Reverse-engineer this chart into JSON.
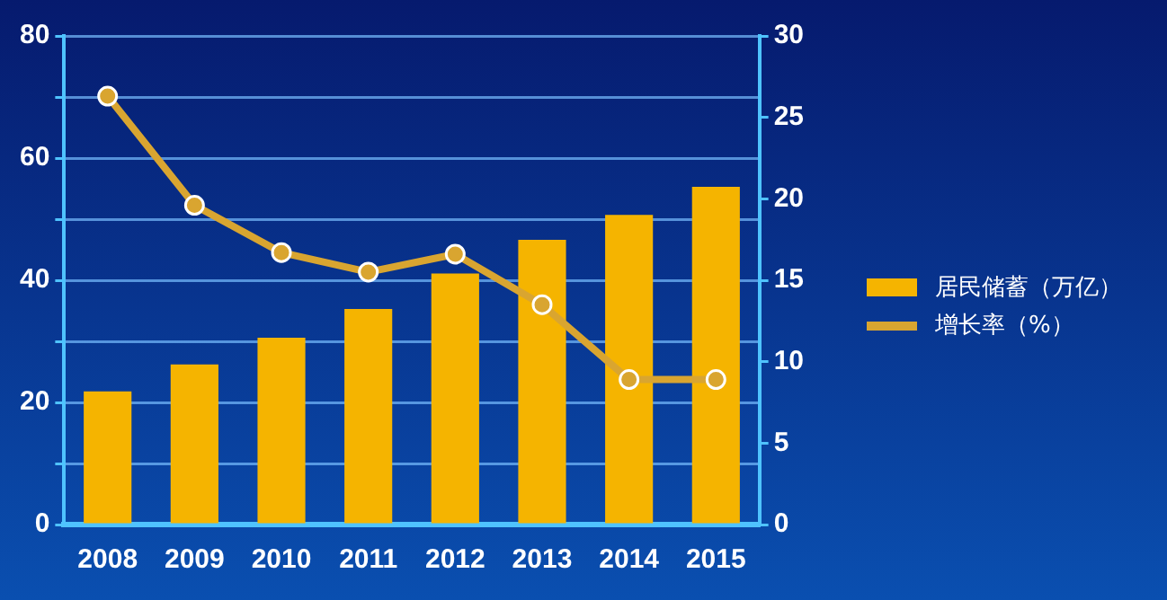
{
  "chart_data": {
    "type": "bar",
    "categories": [
      "2008",
      "2009",
      "2010",
      "2011",
      "2012",
      "2013",
      "2014",
      "2015"
    ],
    "series": [
      {
        "name": "居民储蓄（万亿）",
        "color": "#f5b400",
        "values": [
          21.8,
          26.2,
          30.6,
          35.3,
          41.1,
          46.6,
          50.7,
          55.3
        ]
      },
      {
        "name": "增长率（%）",
        "type": "line",
        "axis": "y2",
        "color": "#d9a530",
        "values": [
          26.3,
          19.6,
          16.7,
          15.5,
          16.6,
          13.5,
          8.9,
          8.9
        ]
      }
    ],
    "ylim": [
      0,
      80
    ],
    "yticks": [
      0,
      {
        "value": 10,
        "label": null
      },
      20,
      {
        "value": 30,
        "label": null
      },
      40,
      {
        "value": 50,
        "label": null
      },
      60,
      {
        "value": 70,
        "label": null
      },
      80
    ],
    "y2lim": [
      0,
      30
    ],
    "y2ticks": [
      0,
      5,
      10,
      15,
      20,
      25,
      30
    ],
    "grid": "y",
    "legend": "right",
    "marker": "circle"
  }
}
